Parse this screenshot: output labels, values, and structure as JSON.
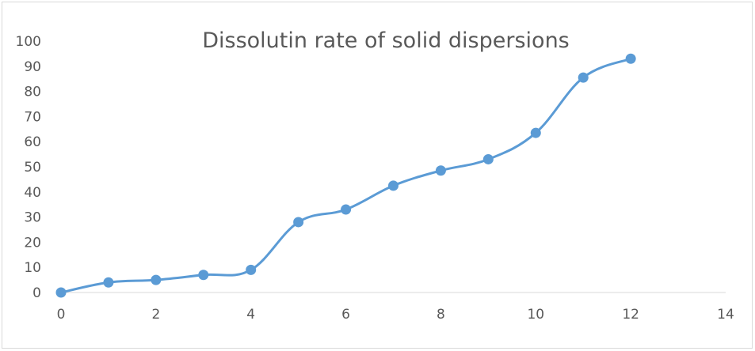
{
  "chart_data": {
    "type": "scatter",
    "title": "Dissolutin rate of solid dispersions",
    "xlabel": "",
    "ylabel": "",
    "xlim": [
      0,
      14
    ],
    "ylim": [
      0,
      100
    ],
    "x_ticks": [
      0,
      2,
      4,
      6,
      8,
      10,
      12,
      14
    ],
    "y_ticks": [
      0,
      10,
      20,
      30,
      40,
      50,
      60,
      70,
      80,
      90,
      100
    ],
    "grid": false,
    "legend": "none",
    "smooth_line": true,
    "series": [
      {
        "color": "#5b9bd5",
        "x": [
          0,
          1,
          2,
          3,
          4,
          5,
          6,
          7,
          8,
          9,
          10,
          11,
          12
        ],
        "y": [
          0,
          4,
          5,
          7,
          9,
          28,
          33,
          42.5,
          48.5,
          53,
          63.5,
          85.5,
          93
        ]
      }
    ]
  }
}
